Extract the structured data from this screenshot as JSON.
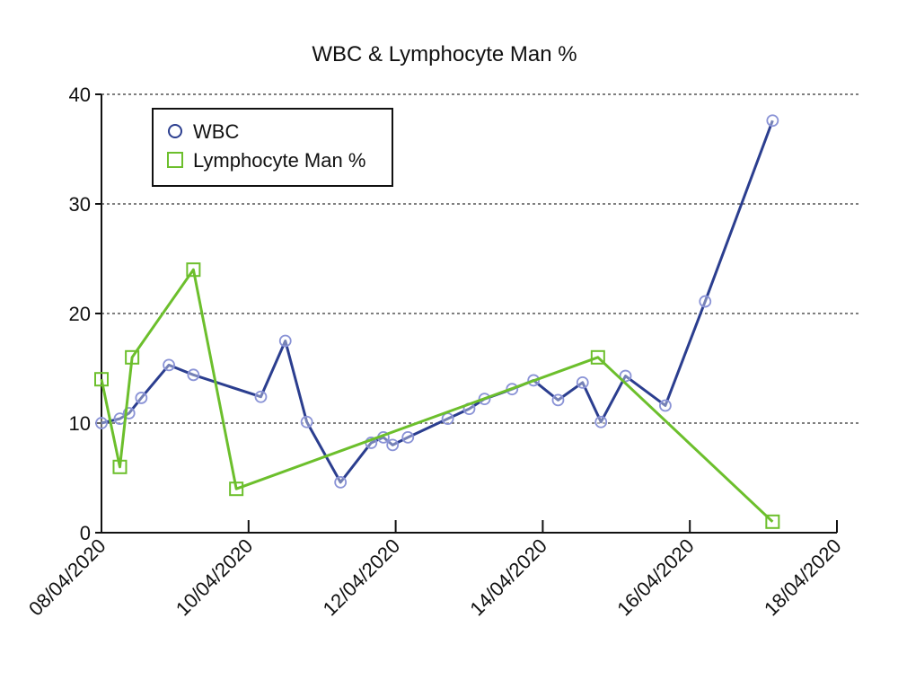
{
  "chart_data": {
    "type": "line",
    "title": "WBC & Lymphocyte Man %",
    "xlabel": "",
    "ylabel": "",
    "x_axis": {
      "type": "date",
      "range": [
        "2020-04-08",
        "2020-04-18"
      ]
    },
    "ylim": [
      0,
      40
    ],
    "y_ticks": [
      "0",
      "10",
      "20",
      "30",
      "40"
    ],
    "x_ticks": [
      "08/04/2020",
      "10/04/2020",
      "12/04/2020",
      "14/04/2020",
      "16/04/2020",
      "18/04/2020"
    ],
    "grid": "horizontal dotted",
    "legend_position": "top-left",
    "series": [
      {
        "name": "WBC",
        "color": "#2b3e8f",
        "marker": "circle",
        "points": [
          [
            "2020-04-08 00:00",
            10.0
          ],
          [
            "2020-04-08 06:00",
            10.4
          ],
          [
            "2020-04-08 09:00",
            10.9
          ],
          [
            "2020-04-08 13:00",
            12.3
          ],
          [
            "2020-04-08 22:00",
            15.3
          ],
          [
            "2020-04-09 06:00",
            14.4
          ],
          [
            "2020-04-10 04:00",
            12.4
          ],
          [
            "2020-04-10 12:00",
            17.5
          ],
          [
            "2020-04-10 19:00",
            10.1
          ],
          [
            "2020-04-11 06:00",
            4.6
          ],
          [
            "2020-04-11 16:00",
            8.2
          ],
          [
            "2020-04-11 20:00",
            8.7
          ],
          [
            "2020-04-11 23:00",
            8.0
          ],
          [
            "2020-04-12 04:00",
            8.7
          ],
          [
            "2020-04-12 17:00",
            10.4
          ],
          [
            "2020-04-13 00:00",
            11.3
          ],
          [
            "2020-04-13 05:00",
            12.2
          ],
          [
            "2020-04-13 14:00",
            13.1
          ],
          [
            "2020-04-13 21:00",
            13.9
          ],
          [
            "2020-04-14 05:00",
            12.1
          ],
          [
            "2020-04-14 13:00",
            13.7
          ],
          [
            "2020-04-14 19:00",
            10.1
          ],
          [
            "2020-04-15 03:00",
            14.3
          ],
          [
            "2020-04-15 16:00",
            11.6
          ],
          [
            "2020-04-16 05:00",
            21.1
          ],
          [
            "2020-04-17 03:00",
            37.6
          ]
        ]
      },
      {
        "name": "Lymphocyte Man %",
        "color": "#6cbf2c",
        "marker": "square",
        "points": [
          [
            "2020-04-08 00:00",
            14.0
          ],
          [
            "2020-04-08 06:00",
            6.0
          ],
          [
            "2020-04-08 10:00",
            16.0
          ],
          [
            "2020-04-09 06:00",
            24.0
          ],
          [
            "2020-04-09 20:00",
            4.0
          ],
          [
            "2020-04-14 18:00",
            16.0
          ],
          [
            "2020-04-17 03:00",
            1.0
          ]
        ]
      }
    ]
  }
}
